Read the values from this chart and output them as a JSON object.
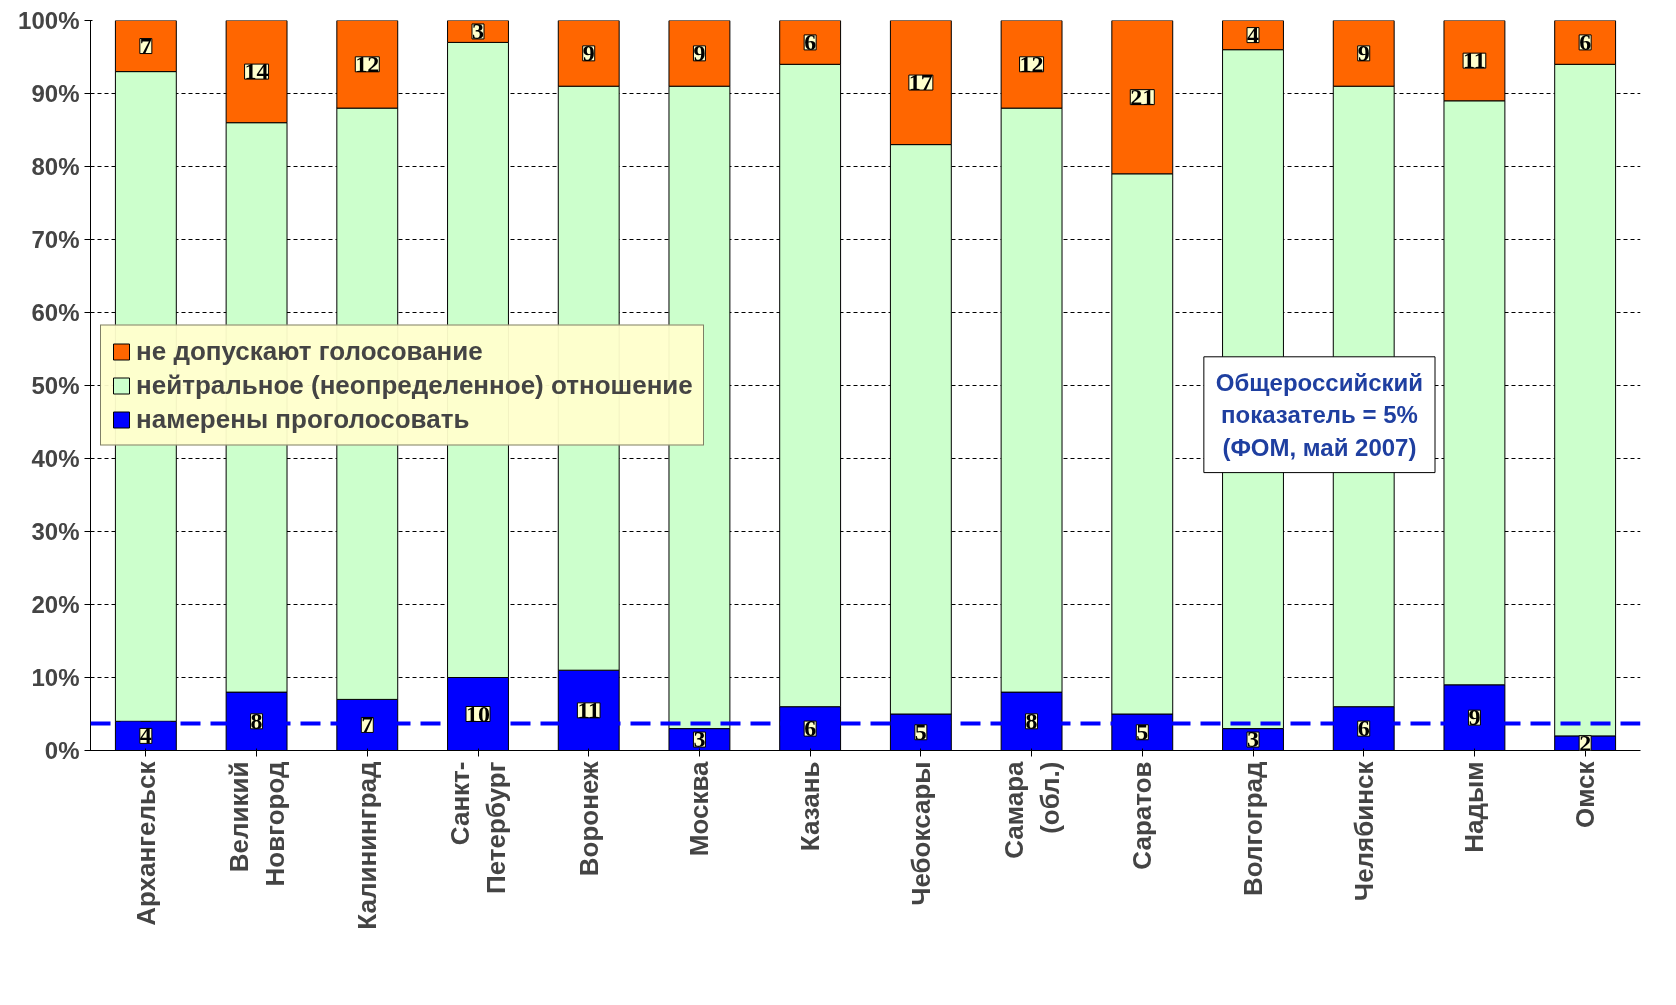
{
  "chart_data": {
    "type": "bar",
    "stacked": true,
    "categories": [
      "Архангельск",
      "Великий Новгород",
      "Калининград",
      "Санкт-Петербург",
      "Воронеж",
      "Москва",
      "Казань",
      "Чебоксары",
      "Самара (обл.)",
      "Саратов",
      "Волгоград",
      "Челябинск",
      "Надым",
      "Омск"
    ],
    "series": [
      {
        "name": "намерены проголосовать",
        "color": "#0000ff",
        "values": [
          4,
          8,
          7,
          10,
          11,
          3,
          6,
          5,
          8,
          5,
          3,
          6,
          9,
          2
        ],
        "value_labels": [
          "4",
          "8",
          "7",
          "10",
          "11",
          "3",
          "6",
          "5",
          "8",
          "5",
          "3",
          "6",
          "9",
          "2"
        ]
      },
      {
        "name": "нейтральное (неопределенное) отношение",
        "color": "#ccffcc",
        "values": [
          89,
          78,
          81,
          87,
          80,
          88,
          88,
          78,
          80,
          74,
          93,
          85,
          80,
          92
        ]
      },
      {
        "name": "не допускают голосование",
        "color": "#ff6600",
        "values": [
          7,
          14,
          12,
          3,
          9,
          9,
          6,
          17,
          12,
          21,
          4,
          9,
          11,
          6
        ],
        "value_labels": [
          "7",
          "14",
          "12",
          "3",
          "9",
          "9",
          "6",
          "17",
          "12",
          "21",
          "4",
          "9",
          "11",
          "6"
        ]
      }
    ],
    "ylim": [
      0,
      100
    ],
    "yticks": [
      {
        "value": 0,
        "label": "0%"
      },
      {
        "value": 10,
        "label": "10%"
      },
      {
        "value": 20,
        "label": "20%"
      },
      {
        "value": 30,
        "label": "30%"
      },
      {
        "value": 40,
        "label": "40%"
      },
      {
        "value": 50,
        "label": "50%"
      },
      {
        "value": 60,
        "label": "60%"
      },
      {
        "value": 70,
        "label": "70%"
      },
      {
        "value": 80,
        "label": "80%"
      },
      {
        "value": 90,
        "label": "90%"
      },
      {
        "value": 100,
        "label": "100%"
      }
    ],
    "grid": "y",
    "legend": "left",
    "ref_lines": [
      {
        "axis": "y",
        "value": 3.7,
        "color": "#0000ff",
        "line_style": "dashed"
      }
    ],
    "annotations": [
      "Общероссийский показатель = 5% (ФОМ, май 2007)"
    ]
  }
}
